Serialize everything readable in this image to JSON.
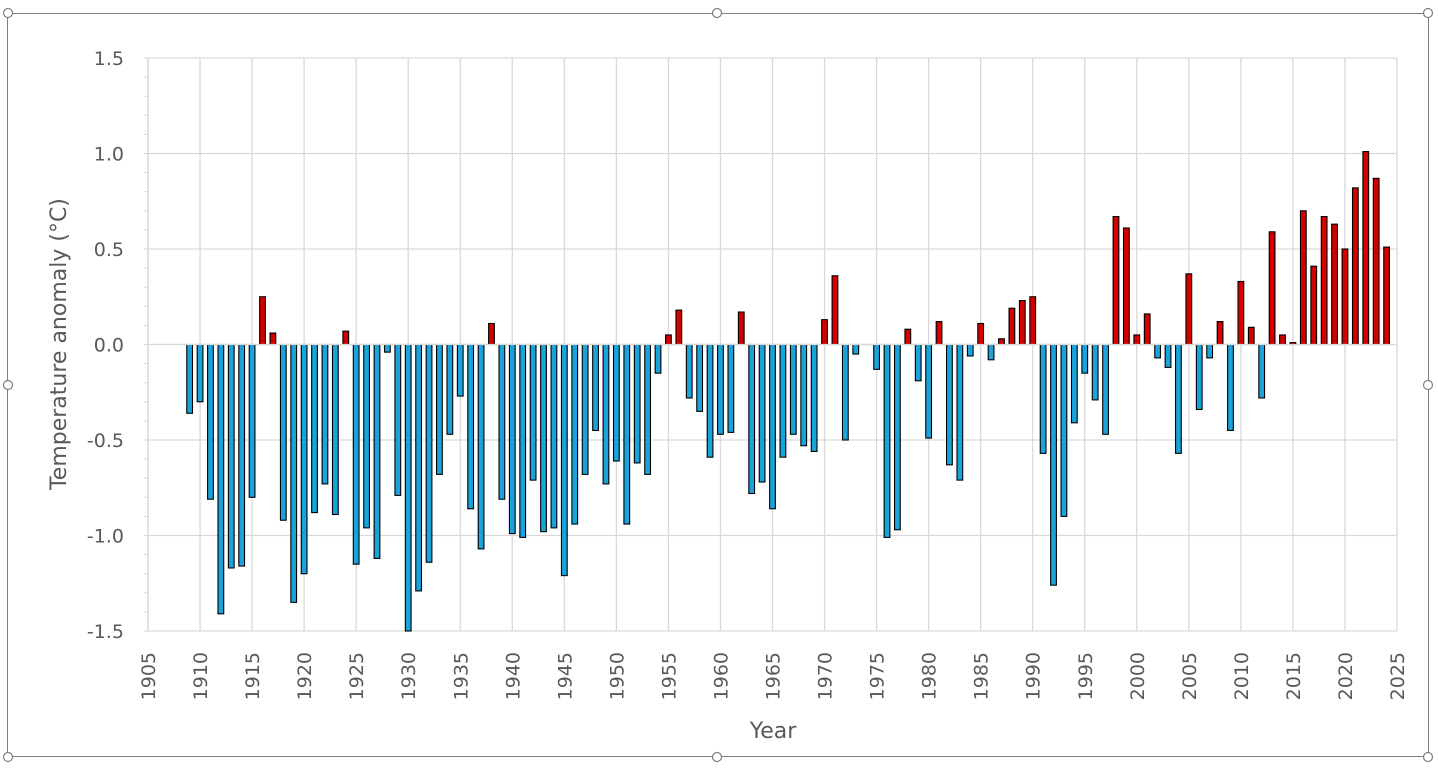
{
  "chart_data": {
    "type": "bar",
    "title": "",
    "xlabel": "Year",
    "ylabel": "Temperature anomaly (°C)",
    "xlim": [
      1905,
      2025
    ],
    "ylim": [
      -1.5,
      1.5
    ],
    "x_ticks": [
      "1905",
      "1910",
      "1915",
      "1920",
      "1925",
      "1930",
      "1935",
      "1940",
      "1945",
      "1950",
      "1955",
      "1960",
      "1965",
      "1970",
      "1975",
      "1980",
      "1985",
      "1990",
      "1995",
      "2000",
      "2005",
      "2010",
      "2015",
      "2020",
      "2025"
    ],
    "y_ticks": [
      "1.5",
      "1.0",
      "0.5",
      "0.0",
      "-0.5",
      "-1.0",
      "-1.5"
    ],
    "grid": true,
    "legend": "none",
    "colors": {
      "positive": "#d40000",
      "negative": "#1aa3db",
      "outline": "#000000",
      "grid": "#d9d9d9",
      "frame": "#7f7f7f"
    },
    "x": [
      1909,
      1910,
      1911,
      1912,
      1913,
      1914,
      1915,
      1916,
      1917,
      1918,
      1919,
      1920,
      1921,
      1922,
      1923,
      1924,
      1925,
      1926,
      1927,
      1928,
      1929,
      1930,
      1931,
      1932,
      1933,
      1934,
      1935,
      1936,
      1937,
      1938,
      1939,
      1940,
      1941,
      1942,
      1943,
      1944,
      1945,
      1946,
      1947,
      1948,
      1949,
      1950,
      1951,
      1952,
      1953,
      1954,
      1955,
      1956,
      1957,
      1958,
      1959,
      1960,
      1961,
      1962,
      1963,
      1964,
      1965,
      1966,
      1967,
      1968,
      1969,
      1970,
      1971,
      1972,
      1973,
      1974,
      1975,
      1976,
      1977,
      1978,
      1979,
      1980,
      1981,
      1982,
      1983,
      1984,
      1985,
      1986,
      1987,
      1988,
      1989,
      1990,
      1991,
      1992,
      1993,
      1994,
      1995,
      1996,
      1997,
      1998,
      1999,
      2000,
      2001,
      2002,
      2003,
      2004,
      2005,
      2006,
      2007,
      2008,
      2009,
      2010,
      2011,
      2012,
      2013,
      2014,
      2015,
      2016,
      2017,
      2018,
      2019,
      2020,
      2021,
      2022,
      2023,
      2024
    ],
    "values": [
      -0.36,
      -0.3,
      -0.81,
      -1.41,
      -1.17,
      -1.16,
      -0.8,
      0.25,
      0.06,
      -0.92,
      -1.35,
      -1.2,
      -0.88,
      -0.73,
      -0.89,
      0.07,
      -1.15,
      -0.96,
      -1.12,
      -0.04,
      -0.79,
      -1.5,
      -1.29,
      -1.14,
      -0.68,
      -0.47,
      -0.27,
      -0.86,
      -1.07,
      0.11,
      -0.81,
      -0.99,
      -1.01,
      -0.71,
      -0.98,
      -0.96,
      -1.21,
      -0.94,
      -0.68,
      -0.45,
      -0.73,
      -0.61,
      -0.94,
      -0.62,
      -0.68,
      -0.15,
      0.05,
      0.18,
      -0.28,
      -0.35,
      -0.59,
      -0.47,
      -0.46,
      0.17,
      -0.78,
      -0.72,
      -0.86,
      -0.59,
      -0.47,
      -0.53,
      -0.56,
      0.13,
      0.36,
      -0.5,
      -0.05,
      0.0,
      -0.13,
      -1.01,
      -0.97,
      0.08,
      -0.19,
      -0.49,
      0.12,
      -0.63,
      -0.71,
      -0.06,
      0.11,
      -0.08,
      0.03,
      0.19,
      0.23,
      0.25,
      -0.57,
      -1.26,
      -0.9,
      -0.41,
      -0.15,
      -0.29,
      -0.47,
      0.67,
      0.61,
      0.05,
      0.16,
      -0.07,
      -0.12,
      -0.57,
      0.37,
      -0.34,
      -0.07,
      0.12,
      -0.45,
      0.33,
      0.09,
      -0.28,
      0.59,
      0.05,
      0.01,
      0.7,
      0.41,
      0.67,
      0.63,
      0.5,
      0.82,
      1.01,
      0.87,
      0.51
    ]
  }
}
